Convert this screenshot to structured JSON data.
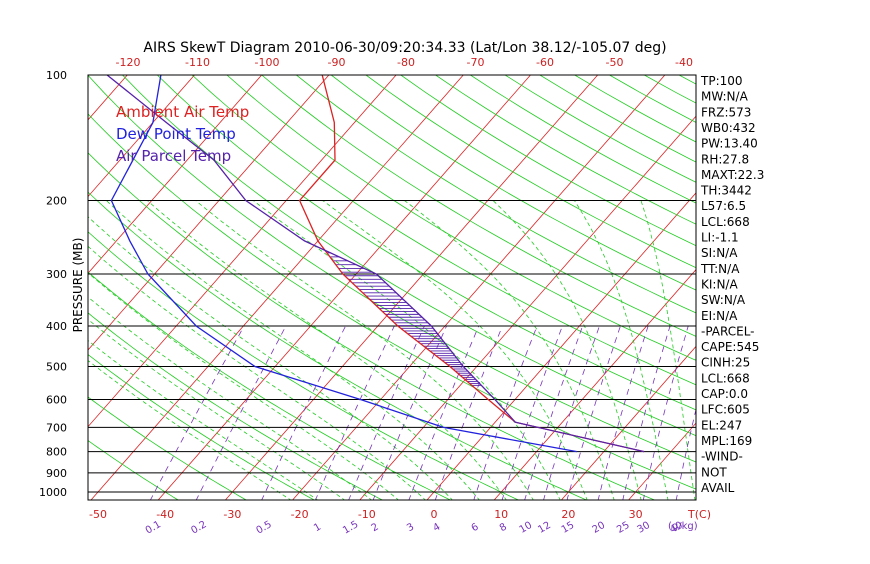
{
  "chart_data": {
    "type": "line",
    "title": "AIRS SkewT Diagram 2010-06-30/09:20:34.33 (Lat/Lon 38.12/-105.07 deg)",
    "ylabel": "PRESSURE (MB)",
    "xlabel_unit": "T(C)",
    "mixing_ratio_unit": "(g/kg)",
    "y_scale": "log",
    "ylim": [
      1000,
      100
    ],
    "xlim_bottom_c": [
      -54,
      38
    ],
    "pressure_ticks": [
      100,
      200,
      300,
      400,
      500,
      600,
      700,
      800,
      900,
      1000
    ],
    "bottom_temp_ticks": [
      -50,
      -40,
      -30,
      -20,
      -10,
      0,
      10,
      20,
      30
    ],
    "top_temp_ticks": [
      -120,
      -110,
      -100,
      -90,
      -80,
      -70,
      -60,
      -50,
      -40
    ],
    "mixing_ratio_labels": [
      "0.1",
      "0.2",
      "0.5",
      "1",
      "1.5",
      "2",
      "3",
      "4",
      "6",
      "8",
      "10",
      "12",
      "15",
      "20",
      "25",
      "30",
      "40"
    ],
    "legend": [
      {
        "name": "Ambient Air Temp",
        "color": "#dd2222"
      },
      {
        "name": "Dew Point Temp",
        "color": "#2222dd"
      },
      {
        "name": "Air Parcel Temp",
        "color": "#5522aa"
      }
    ],
    "grid": {
      "isobar_color": "#000000",
      "isotherm_color": "#dd2222",
      "dry_adiabat_color": "#22cc22",
      "moist_adiabat_color": "#22cc22",
      "mixing_ratio_color": "#7733bb"
    },
    "series": [
      {
        "name": "Ambient Air Temp",
        "color": "#dd2222",
        "points": [
          [
            100,
            -71
          ],
          [
            130,
            -63
          ],
          [
            160,
            -58
          ],
          [
            200,
            -58
          ],
          [
            250,
            -50
          ],
          [
            300,
            -42
          ],
          [
            400,
            -27
          ],
          [
            500,
            -14
          ],
          [
            600,
            -4
          ],
          [
            680,
            3
          ],
          [
            800,
            26
          ]
        ]
      },
      {
        "name": "Dew Point Temp",
        "color": "#2222dd",
        "points": [
          [
            100,
            -95
          ],
          [
            130,
            -90
          ],
          [
            200,
            -86
          ],
          [
            250,
            -78
          ],
          [
            300,
            -71
          ],
          [
            400,
            -57
          ],
          [
            500,
            -43
          ],
          [
            600,
            -23
          ],
          [
            700,
            -7
          ],
          [
            800,
            16
          ]
        ]
      },
      {
        "name": "Air Parcel Temp",
        "color": "#5522aa",
        "points": [
          [
            100,
            -103
          ],
          [
            130,
            -88
          ],
          [
            160,
            -76
          ],
          [
            200,
            -66
          ],
          [
            250,
            -52
          ],
          [
            300,
            -37
          ],
          [
            400,
            -22
          ],
          [
            500,
            -12
          ],
          [
            600,
            -3
          ],
          [
            680,
            3
          ],
          [
            800,
            26
          ]
        ]
      }
    ],
    "indices": [
      "TP:100",
      "MW:N/A",
      "FRZ:573",
      "WB0:432",
      "PW:13.40",
      "RH:27.8",
      "MAXT:22.3",
      "TH:3442",
      "L57:6.5",
      "LCL:668",
      "LI:-1.1",
      "SI:N/A",
      "TT:N/A",
      "KI:N/A",
      "SW:N/A",
      "EI:N/A",
      "-PARCEL-",
      "CAPE:545",
      "CINH:25",
      "LCL:668",
      "CAP:0.0",
      "LFC:605",
      "EL:247",
      "MPL:169",
      "-WIND-",
      "NOT",
      "AVAIL"
    ]
  }
}
